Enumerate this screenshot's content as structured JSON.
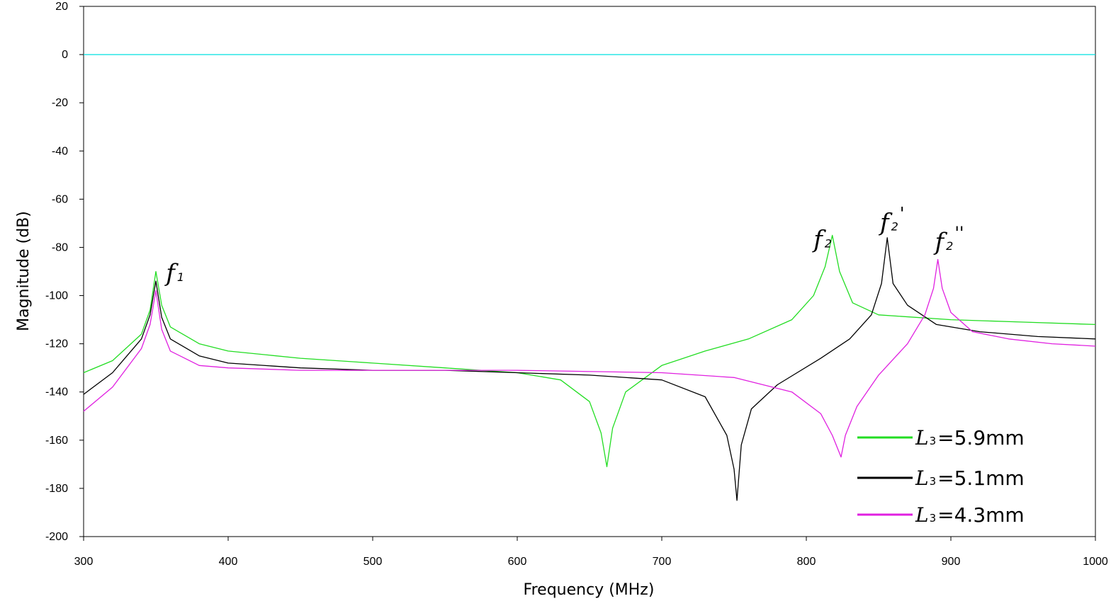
{
  "chart_data": {
    "type": "line",
    "title": "",
    "xlabel": "Frequency (MHz)",
    "ylabel": "Magnitude (dB)",
    "xlim": [
      300,
      1000
    ],
    "ylim": [
      -200,
      20
    ],
    "xticks": [
      300,
      400,
      500,
      600,
      700,
      800,
      900,
      1000
    ],
    "yticks": [
      20,
      0,
      -20,
      -40,
      -60,
      -80,
      -100,
      -120,
      -140,
      -160,
      -180,
      -200
    ],
    "grid": false,
    "legend_position": "bottom-right",
    "reference_line": {
      "y": 0,
      "color": "#00e0e0"
    },
    "series": [
      {
        "legend_var": "L",
        "legend_sub": "3",
        "legend_rest": "=5.9mm",
        "color": "#22dd22",
        "x": [
          300,
          320,
          340,
          346,
          350,
          354,
          360,
          380,
          400,
          450,
          500,
          550,
          600,
          630,
          650,
          658,
          662,
          666,
          675,
          700,
          730,
          760,
          790,
          805,
          813,
          818,
          823,
          832,
          850,
          900,
          950,
          1000
        ],
        "y": [
          -132,
          -127,
          -116,
          -106,
          -90,
          -104,
          -113,
          -120,
          -123,
          -126,
          -128,
          -130,
          -132,
          -135,
          -144,
          -157,
          -171,
          -155,
          -140,
          -129,
          -123,
          -118,
          -110,
          -100,
          -88,
          -75,
          -90,
          -103,
          -108,
          -110,
          -111,
          -112
        ]
      },
      {
        "legend_var": "L",
        "legend_sub": "3",
        "legend_rest": "=5.1mm",
        "color": "#000000",
        "x": [
          300,
          320,
          340,
          346,
          350,
          354,
          360,
          380,
          400,
          450,
          500,
          550,
          600,
          650,
          700,
          730,
          745,
          750,
          752,
          755,
          762,
          780,
          810,
          830,
          845,
          852,
          856,
          860,
          870,
          890,
          920,
          960,
          1000
        ],
        "y": [
          -141,
          -132,
          -118,
          -108,
          -94,
          -109,
          -118,
          -125,
          -128,
          -130,
          -131,
          -131,
          -132,
          -133,
          -135,
          -142,
          -158,
          -172,
          -185,
          -162,
          -147,
          -137,
          -126,
          -118,
          -108,
          -95,
          -76,
          -95,
          -104,
          -112,
          -115,
          -117,
          -118
        ]
      },
      {
        "legend_var": "L",
        "legend_sub": "3",
        "legend_rest": "=4.3mm",
        "color": "#e020e0",
        "x": [
          300,
          320,
          340,
          346,
          350,
          354,
          360,
          380,
          400,
          450,
          500,
          600,
          700,
          750,
          790,
          810,
          818,
          822,
          824,
          827,
          835,
          850,
          870,
          882,
          888,
          891,
          894,
          900,
          915,
          940,
          970,
          1000
        ],
        "y": [
          -148,
          -138,
          -122,
          -112,
          -98,
          -114,
          -123,
          -129,
          -130,
          -131,
          -131,
          -131,
          -132,
          -134,
          -140,
          -149,
          -158,
          -164,
          -167,
          -158,
          -146,
          -133,
          -120,
          -108,
          -97,
          -85,
          -97,
          -107,
          -115,
          -118,
          -120,
          -121
        ]
      }
    ],
    "annotations": [
      {
        "main": "f",
        "sub": "1",
        "prime": "",
        "x": 357,
        "y": -94
      },
      {
        "main": "f",
        "sub": "2",
        "prime": "",
        "x": 805,
        "y": -80
      },
      {
        "main": "f",
        "sub": "2",
        "prime": "'",
        "x": 851,
        "y": -73
      },
      {
        "main": "f",
        "sub": "2",
        "prime": "''",
        "x": 889,
        "y": -81
      }
    ]
  }
}
